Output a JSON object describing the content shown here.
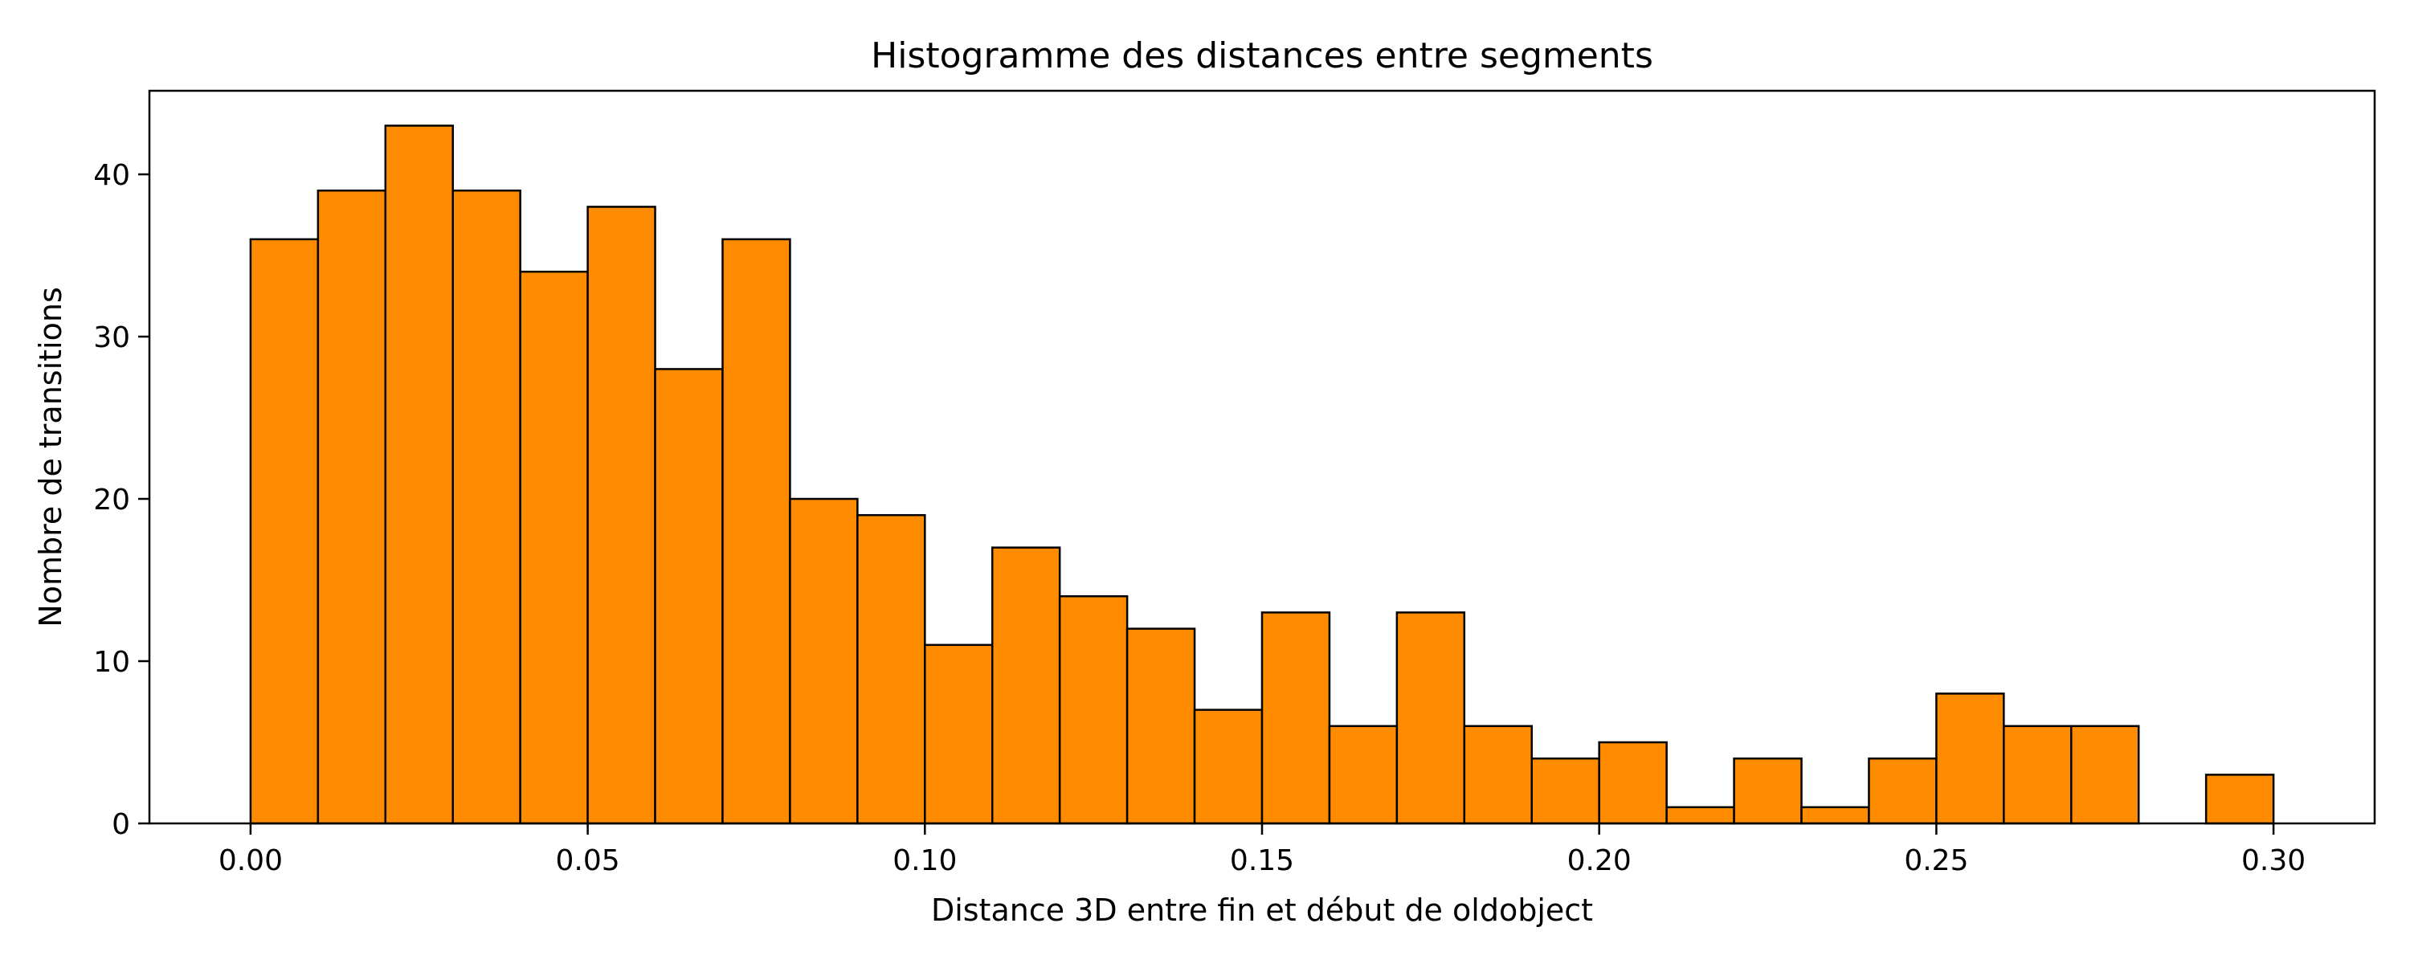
{
  "chart_data": {
    "type": "bar",
    "title": "Histogramme des distances entre segments",
    "xlabel": "Distance 3D entre fin et début de oldobject",
    "ylabel": "Nombre de transitions",
    "bin_width": 0.01,
    "bin_start": 0.0,
    "values": [
      36,
      39,
      43,
      39,
      34,
      38,
      28,
      36,
      20,
      19,
      11,
      17,
      14,
      12,
      7,
      13,
      6,
      13,
      6,
      4,
      5,
      1,
      4,
      1,
      4,
      8,
      6,
      6,
      0,
      3
    ],
    "xlim": [
      -0.015,
      0.315
    ],
    "ylim": [
      0,
      45.15
    ],
    "xticks": [
      0.0,
      0.05,
      0.1,
      0.15,
      0.2,
      0.25,
      0.3
    ],
    "xtick_labels": [
      "0.00",
      "0.05",
      "0.10",
      "0.15",
      "0.20",
      "0.25",
      "0.30"
    ],
    "yticks": [
      0,
      10,
      20,
      30,
      40
    ],
    "ytick_labels": [
      "0",
      "10",
      "20",
      "30",
      "40"
    ],
    "bar_color": "#ff8c00",
    "edge_color": "#000000",
    "grid": false
  }
}
